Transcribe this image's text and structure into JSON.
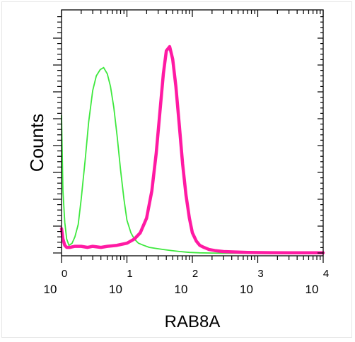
{
  "colors": {
    "control": "#3ee83e",
    "sample": "#ff1aa3",
    "axis": "#000000",
    "background": "#ffffff"
  },
  "chart_data": {
    "type": "line",
    "title": "",
    "xlabel": "RAB8A",
    "ylabel": "Counts",
    "x_scale": "log",
    "xlim": [
      1,
      10000
    ],
    "ylim": [
      0,
      1
    ],
    "grid": false,
    "legend": "none",
    "x_ticks": [
      {
        "base": "10",
        "exp": "0",
        "value": 1
      },
      {
        "base": "10",
        "exp": "1",
        "value": 10
      },
      {
        "base": "10",
        "exp": "2",
        "value": 100
      },
      {
        "base": "10",
        "exp": "3",
        "value": 1000
      },
      {
        "base": "10",
        "exp": "4",
        "value": 10000
      }
    ],
    "series": [
      {
        "color": "#3ee83e",
        "x": [
          1.0,
          1.05,
          1.12,
          1.2,
          1.3,
          1.45,
          1.6,
          1.8,
          2.0,
          2.3,
          2.6,
          3.0,
          3.4,
          3.9,
          4.4,
          5.0,
          5.6,
          6.3,
          7.1,
          8.0,
          9.0,
          10.0,
          11.5,
          13.0,
          15.0,
          18.0,
          22.0,
          28.0,
          36.0,
          48.0,
          65.0,
          90.0,
          130.0,
          200.0,
          300.0,
          500.0,
          1000.0,
          2000.0,
          5000.0,
          10000.0
        ],
        "y": [
          0.66,
          0.3,
          0.15,
          0.07,
          0.04,
          0.05,
          0.08,
          0.14,
          0.26,
          0.45,
          0.63,
          0.78,
          0.85,
          0.88,
          0.89,
          0.86,
          0.8,
          0.7,
          0.56,
          0.4,
          0.26,
          0.16,
          0.1,
          0.07,
          0.05,
          0.04,
          0.03,
          0.025,
          0.02,
          0.015,
          0.01,
          0.006,
          0.004,
          0.003,
          0.002,
          0.002,
          0.001,
          0.001,
          0.001,
          0.001
        ]
      },
      {
        "color": "#ff1aa3",
        "x": [
          1.0,
          1.05,
          1.12,
          1.2,
          1.35,
          1.6,
          2.0,
          2.5,
          3.0,
          4.0,
          5.0,
          7.0,
          10.0,
          13.0,
          16.0,
          20.0,
          24.0,
          28.0,
          32.0,
          36.0,
          40.0,
          45.0,
          50.0,
          56.0,
          63.0,
          71.0,
          80.0,
          90.0,
          100.0,
          115.0,
          130.0,
          150.0,
          180.0,
          220.0,
          300.0,
          450.0,
          700.0,
          1200.0,
          3000.0,
          10000.0
        ],
        "y": [
          0.12,
          0.07,
          0.04,
          0.03,
          0.03,
          0.035,
          0.035,
          0.03,
          0.035,
          0.03,
          0.035,
          0.04,
          0.05,
          0.07,
          0.1,
          0.17,
          0.3,
          0.48,
          0.68,
          0.86,
          0.97,
          0.99,
          0.93,
          0.8,
          0.62,
          0.43,
          0.28,
          0.17,
          0.1,
          0.06,
          0.04,
          0.03,
          0.02,
          0.015,
          0.01,
          0.008,
          0.006,
          0.005,
          0.004,
          0.004
        ]
      }
    ]
  }
}
